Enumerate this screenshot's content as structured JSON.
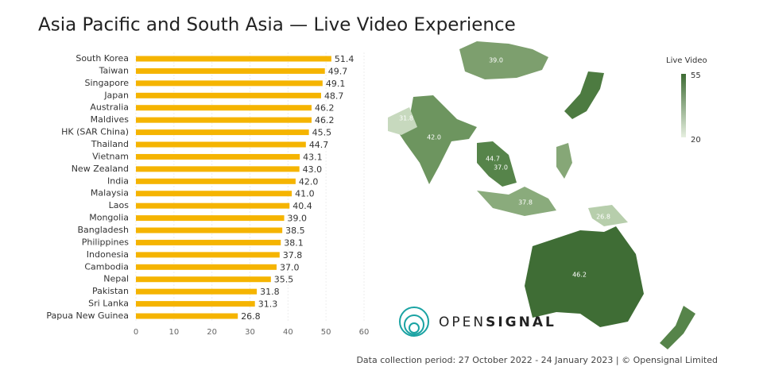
{
  "chart_data": {
    "type": "barh",
    "title": "Asia Pacific and South Asia — Live Video Experience",
    "categories": [
      "South Korea",
      "Taiwan",
      "Singapore",
      "Japan",
      "Australia",
      "Maldives",
      "HK (SAR China)",
      "Thailand",
      "Vietnam",
      "New Zealand",
      "India",
      "Malaysia",
      "Laos",
      "Mongolia",
      "Bangladesh",
      "Philippines",
      "Indonesia",
      "Cambodia",
      "Nepal",
      "Pakistan",
      "Sri Lanka",
      "Papua New Guinea"
    ],
    "values": [
      51.4,
      49.7,
      49.1,
      48.7,
      46.2,
      46.2,
      45.5,
      44.7,
      43.1,
      43.0,
      42.0,
      41.0,
      40.4,
      39.0,
      38.5,
      38.1,
      37.8,
      37.0,
      35.5,
      31.8,
      31.3,
      26.8
    ],
    "value_labels": [
      "51.4",
      "49.7",
      "49.1",
      "48.7",
      "46.2",
      "46.2",
      "45.5",
      "44.7",
      "43.1",
      "43.0",
      "42.0",
      "41.0",
      "40.4",
      "39.0",
      "38.5",
      "38.1",
      "37.8",
      "37.0",
      "35.5",
      "31.8",
      "31.3",
      "26.8"
    ],
    "color": "#f5b400",
    "xlim": [
      0,
      60
    ],
    "xticks": [
      0,
      10,
      20,
      30,
      40,
      50,
      60
    ],
    "grid": true
  },
  "map": {
    "legend_title": "Live Video",
    "legend_max": 55,
    "legend_min": 20,
    "labels": [
      "39.0",
      "31.8",
      "42.0",
      "44.7",
      "37.0",
      "37.8",
      "26.8",
      "46.2"
    ]
  },
  "logo": {
    "light": "OPEN",
    "bold": "SIGNAL"
  },
  "footer": "Data collection period: 27 October 2022 - 24 January 2023  |  © Opensignal Limited"
}
